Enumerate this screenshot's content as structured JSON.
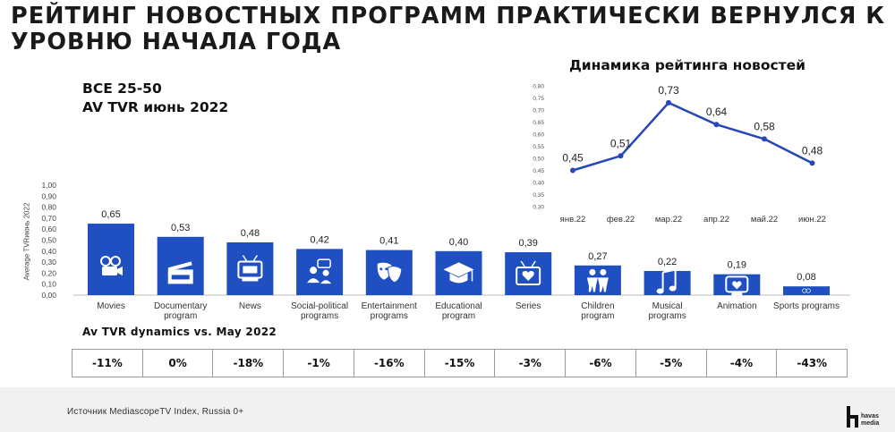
{
  "page": {
    "title": "РЕЙТИНГ НОВОСТНЫХ ПРОГРАММ ПРАКТИЧЕСКИ ВЕРНУЛСЯ К УРОВНЮ НАЧАЛА ГОДА",
    "subtitle_line1": "ВСЕ 25-50",
    "subtitle_line2": "AV TVR  июнь 2022",
    "source": "Источник MediascopeTV Index, Russia 0+",
    "logo_text_line1": "havas",
    "logo_text_line2": "media",
    "accent_color": "#1f4fc1",
    "line_color": "#2747b8"
  },
  "chart_data": [
    {
      "type": "bar",
      "title": "",
      "ylabel": "Average TVRиюнь 2022",
      "ylim": [
        0,
        1.0
      ],
      "yticks": [
        "0,00",
        "0,10",
        "0,20",
        "0,30",
        "0,40",
        "0,50",
        "0,60",
        "0,70",
        "0,80",
        "0,90",
        "1,00"
      ],
      "categories": [
        {
          "label": [
            "Movies"
          ],
          "icon": "movie-camera-icon"
        },
        {
          "label": [
            "Documentary",
            "program"
          ],
          "icon": "clapperboard-icon"
        },
        {
          "label": [
            "News"
          ],
          "icon": "news-tv-icon"
        },
        {
          "label": [
            "Social-political",
            "programs"
          ],
          "icon": "discussion-icon"
        },
        {
          "label": [
            "Entertainment",
            "programs"
          ],
          "icon": "theater-masks-icon"
        },
        {
          "label": [
            "Educational",
            "program"
          ],
          "icon": "graduation-cap-icon"
        },
        {
          "label": [
            "Series"
          ],
          "icon": "tv-heart-icon"
        },
        {
          "label": [
            "Children",
            "program"
          ],
          "icon": "children-icon"
        },
        {
          "label": [
            "Musical",
            "programs"
          ],
          "icon": "music-note-icon"
        },
        {
          "label": [
            "Animation"
          ],
          "icon": "animation-tv-icon"
        },
        {
          "label": [
            "Sports programs"
          ],
          "icon": "sports-balls-icon"
        }
      ],
      "values": [
        0.65,
        0.53,
        0.48,
        0.42,
        0.41,
        0.4,
        0.39,
        0.27,
        0.22,
        0.19,
        0.08
      ],
      "value_labels": [
        "0,65",
        "0,53",
        "0,48",
        "0,42",
        "0,41",
        "0,40",
        "0,39",
        "0,27",
        "0,22",
        "0,19",
        "0,08"
      ],
      "color": "#1f4fc1"
    },
    {
      "type": "line",
      "title": "Динамика рейтинга новостей",
      "x": [
        "янв.22",
        "фев.22",
        "мар.22",
        "апр.22",
        "май.22",
        "июн.22"
      ],
      "values": [
        0.45,
        0.51,
        0.73,
        0.64,
        0.58,
        0.48
      ],
      "value_labels": [
        "0,45",
        "0,51",
        "0,73",
        "0,64",
        "0,58",
        "0,48"
      ],
      "ylim": [
        0.3,
        0.8
      ],
      "yticks": [
        "0,30",
        "0,35",
        "0,40",
        "0,45",
        "0,50",
        "0,55",
        "0,60",
        "0,65",
        "0,70",
        "0,75",
        "0,80"
      ],
      "color": "#2747b8"
    }
  ],
  "dynamics": {
    "label": "Av TVR dynamics vs. May 2022",
    "values": [
      "-11%",
      "0%",
      "-18%",
      "-1%",
      "-16%",
      "-15%",
      "-3%",
      "-6%",
      "-5%",
      "-4%",
      "-43%"
    ]
  }
}
